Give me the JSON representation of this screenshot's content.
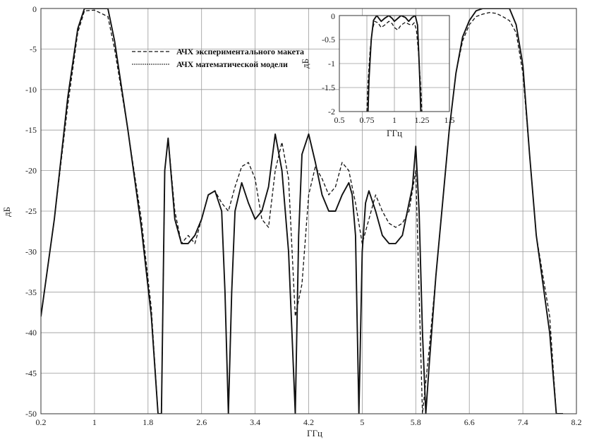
{
  "chart_data": [
    {
      "type": "line",
      "xlabel": "ГГц",
      "ylabel": "дБ",
      "xlim": [
        0.2,
        8.2
      ],
      "ylim": [
        -50,
        0
      ],
      "xticks": [
        0.2,
        1,
        1.8,
        2.6,
        3.4,
        4.2,
        5,
        5.8,
        6.6,
        7.4,
        8.2
      ],
      "xtick_labels": [
        "0.2",
        "1",
        "1.8",
        "2.6",
        "3.4",
        "4.2",
        "5",
        "5.8",
        "6.6",
        "7.4",
        "8.2"
      ],
      "yticks": [
        0,
        -5,
        -10,
        -15,
        -20,
        -25,
        -30,
        -35,
        -40,
        -45,
        -50
      ],
      "ytick_labels": [
        "0",
        "-5",
        "-10",
        "-15",
        "-20",
        "-25",
        "-30",
        "-35",
        "-40",
        "-45",
        "-50"
      ],
      "grid": true,
      "legend_position": "upper-left",
      "series": [
        {
          "name": "АЧХ экспериментального макета",
          "style": "dashed",
          "x": [
            0.2,
            0.4,
            0.6,
            0.75,
            0.85,
            1.0,
            1.2,
            1.3,
            1.5,
            1.7,
            1.85,
            1.95,
            2.0,
            2.05,
            2.1,
            2.2,
            2.3,
            2.4,
            2.5,
            2.6,
            2.7,
            2.8,
            2.9,
            3.0,
            3.1,
            3.2,
            3.3,
            3.4,
            3.5,
            3.6,
            3.7,
            3.8,
            3.9,
            4.0,
            4.1,
            4.2,
            4.3,
            4.4,
            4.5,
            4.6,
            4.7,
            4.8,
            4.9,
            5.0,
            5.1,
            5.2,
            5.3,
            5.4,
            5.5,
            5.6,
            5.7,
            5.8,
            5.85,
            5.9,
            6.0,
            6.1,
            6.2,
            6.3,
            6.4,
            6.5,
            6.6,
            6.7,
            6.8,
            6.9,
            7.0,
            7.1,
            7.2,
            7.3,
            7.4,
            7.5,
            7.6,
            7.7,
            7.8,
            7.9,
            8.0
          ],
          "y": [
            -38,
            -26,
            -12,
            -3,
            -0.3,
            -0.2,
            -1,
            -5,
            -15,
            -26,
            -37,
            -50,
            -50,
            -20,
            -16,
            -25,
            -29,
            -28,
            -29,
            -26,
            -23,
            -22.5,
            -24,
            -25,
            -22,
            -19.5,
            -19,
            -21,
            -26,
            -27,
            -20,
            -16.5,
            -21,
            -38,
            -34,
            -23,
            -19.5,
            -21,
            -23,
            -22,
            -19,
            -20,
            -24,
            -29,
            -26,
            -23,
            -25,
            -26.5,
            -27,
            -26.5,
            -25,
            -20,
            -35,
            -50,
            -42,
            -33,
            -24,
            -15,
            -8,
            -4,
            -2,
            -1,
            -0.7,
            -0.5,
            -0.6,
            -1,
            -1.5,
            -3,
            -8,
            -18,
            -28,
            -33,
            -38,
            -50,
            -50
          ]
        },
        {
          "name": "АЧХ математической модели",
          "style": "solid",
          "x": [
            0.2,
            0.4,
            0.6,
            0.75,
            0.85,
            1.0,
            1.2,
            1.3,
            1.5,
            1.7,
            1.85,
            1.95,
            2.0,
            2.05,
            2.1,
            2.2,
            2.3,
            2.4,
            2.5,
            2.6,
            2.7,
            2.8,
            2.9,
            2.95,
            3.0,
            3.05,
            3.1,
            3.2,
            3.3,
            3.4,
            3.5,
            3.6,
            3.7,
            3.8,
            3.9,
            3.95,
            4.0,
            4.05,
            4.1,
            4.2,
            4.3,
            4.4,
            4.5,
            4.6,
            4.7,
            4.8,
            4.85,
            4.9,
            4.95,
            5.0,
            5.05,
            5.1,
            5.2,
            5.3,
            5.4,
            5.5,
            5.6,
            5.7,
            5.75,
            5.8,
            5.85,
            5.9,
            5.95,
            6.0,
            6.1,
            6.2,
            6.3,
            6.4,
            6.5,
            6.6,
            6.7,
            6.8,
            6.9,
            7.0,
            7.1,
            7.2,
            7.3,
            7.4,
            7.5,
            7.6,
            7.7,
            7.8,
            7.9,
            8.0
          ],
          "y": [
            -38,
            -26,
            -11,
            -2.5,
            0,
            0,
            0,
            -4,
            -15,
            -27,
            -38,
            -50,
            -50,
            -20,
            -16,
            -26,
            -29,
            -29,
            -28,
            -26,
            -23,
            -22.5,
            -25,
            -35,
            -50,
            -35,
            -25,
            -21.5,
            -24,
            -26,
            -25,
            -22,
            -15.5,
            -20,
            -30,
            -40,
            -50,
            -28,
            -18,
            -15.5,
            -19,
            -23,
            -25,
            -25,
            -23,
            -21.5,
            -23,
            -28,
            -50,
            -30,
            -24,
            -22.5,
            -25,
            -28,
            -29,
            -29,
            -28,
            -24,
            -22,
            -17,
            -25,
            -40,
            -50,
            -44,
            -33,
            -24,
            -15,
            -8,
            -3.5,
            -1.5,
            -0.3,
            0,
            0,
            0,
            0,
            0,
            -2,
            -7,
            -18,
            -28,
            -34,
            -40,
            -50,
            -50
          ]
        }
      ]
    },
    {
      "type": "line",
      "xlabel": "ГГц",
      "ylabel": "дБ",
      "xlim": [
        0.5,
        1.5
      ],
      "ylim": [
        -2,
        0
      ],
      "xticks": [
        0.5,
        0.75,
        1,
        1.25,
        1.5
      ],
      "xtick_labels": [
        "0.5",
        "0.75",
        "1",
        "1.25",
        "1.5"
      ],
      "yticks": [
        0,
        -0.5,
        -1,
        -1.5,
        -2
      ],
      "ytick_labels": [
        "0",
        "-0.5",
        "-1",
        "-1.5",
        "-2"
      ],
      "grid": true,
      "series": [
        {
          "style": "dashed",
          "x": [
            0.75,
            0.76,
            0.78,
            0.8,
            0.82,
            0.85,
            0.88,
            0.91,
            0.95,
            0.98,
            1.0,
            1.03,
            1.06,
            1.1,
            1.13,
            1.16,
            1.18,
            1.2,
            1.22,
            1.24,
            1.25
          ],
          "y": [
            -2,
            -1.4,
            -0.7,
            -0.3,
            -0.12,
            -0.15,
            -0.25,
            -0.2,
            -0.12,
            -0.17,
            -0.25,
            -0.3,
            -0.2,
            -0.14,
            -0.18,
            -0.2,
            -0.15,
            -0.3,
            -0.8,
            -1.5,
            -2
          ]
        },
        {
          "style": "solid",
          "x": [
            0.76,
            0.77,
            0.79,
            0.81,
            0.84,
            0.88,
            0.91,
            0.95,
            0.98,
            1.0,
            1.03,
            1.06,
            1.1,
            1.13,
            1.16,
            1.19,
            1.21,
            1.22,
            1.23,
            1.24
          ],
          "y": [
            -2,
            -1.3,
            -0.5,
            -0.1,
            0,
            -0.12,
            -0.06,
            0,
            -0.06,
            -0.12,
            -0.06,
            0,
            -0.04,
            -0.12,
            -0.04,
            0,
            -0.2,
            -0.7,
            -1.3,
            -2
          ]
        }
      ]
    }
  ]
}
